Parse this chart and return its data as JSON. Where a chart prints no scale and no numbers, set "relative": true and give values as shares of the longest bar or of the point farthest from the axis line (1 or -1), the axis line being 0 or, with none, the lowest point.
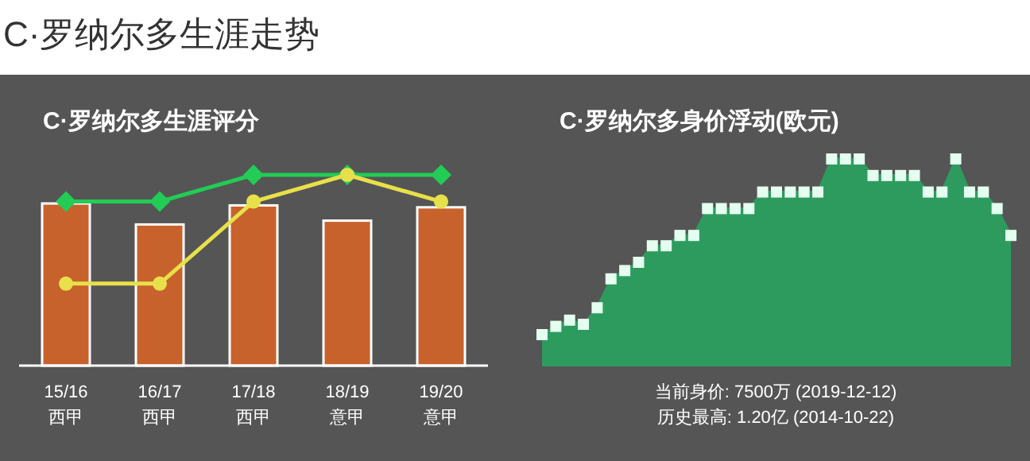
{
  "chart_data": [
    {
      "type": "bar",
      "title": "C·罗纳尔多生涯走势",
      "subtitle": "C·罗纳尔多生涯评分",
      "relative": true,
      "categories": [
        "15/16\n西甲",
        "16/17\n西甲",
        "17/18\n西甲",
        "18/19\n意甲",
        "19/20\n意甲"
      ],
      "series": [
        {
          "type": "bar",
          "color": "#c8622c",
          "values": [
            0.85,
            0.74,
            0.84,
            0.76,
            0.83
          ]
        },
        {
          "type": "line",
          "color": "#22cc55",
          "marker": "diamond",
          "values": [
            0.86,
            0.86,
            1,
            1,
            1
          ]
        },
        {
          "type": "line",
          "color": "#e8e04a",
          "marker": "circle",
          "values": [
            0.43,
            0.43,
            0.86,
            1,
            0.86
          ]
        }
      ]
    },
    {
      "type": "area",
      "title": "C·罗纳尔多身价浮动(欧元)",
      "relative": true,
      "color": "#2e9b5e",
      "marker": "square",
      "categories": [
        null,
        null,
        null,
        null,
        null,
        null,
        null,
        null,
        null,
        null,
        null,
        null,
        null,
        null,
        null,
        null,
        null,
        null,
        null,
        null,
        null,
        null,
        null,
        null,
        null,
        null,
        null,
        null,
        null,
        null,
        null,
        null,
        null,
        null,
        null
      ],
      "values": [
        0.15,
        0.19,
        0.22,
        0.2,
        0.28,
        0.42,
        0.46,
        0.5,
        0.58,
        0.58,
        0.63,
        0.63,
        0.76,
        0.76,
        0.76,
        0.76,
        0.84,
        0.84,
        0.84,
        0.84,
        0.84,
        1,
        1,
        1,
        0.92,
        0.92,
        0.92,
        0.92,
        0.84,
        0.84,
        1,
        0.84,
        0.84,
        0.76,
        0.63
      ],
      "annotations": [
        "当前身价: 7500万 (2019-12-12)",
        "历史最高: 1.20亿 (2014-10-22)"
      ]
    }
  ]
}
